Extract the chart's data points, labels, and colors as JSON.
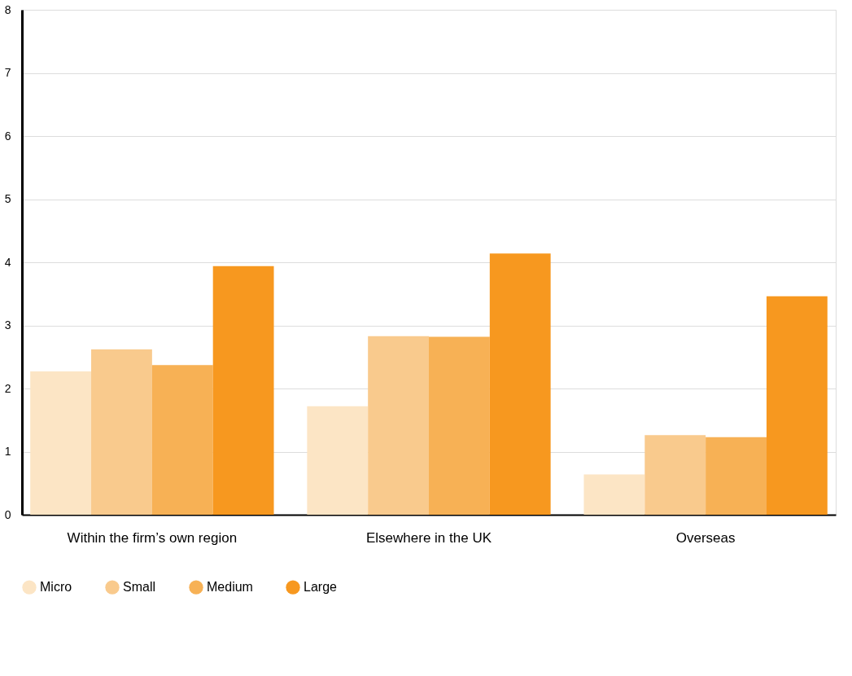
{
  "chart_data": {
    "type": "bar",
    "categories": [
      "Within the firm’s own region",
      "Elsewhere in the UK",
      "Overseas"
    ],
    "series": [
      {
        "name": "Micro",
        "color": "#fce5c5",
        "values": [
          2.27,
          1.72,
          0.64
        ]
      },
      {
        "name": "Small",
        "color": "#f9ca8d",
        "values": [
          2.62,
          2.83,
          1.26
        ]
      },
      {
        "name": "Medium",
        "color": "#f7b155",
        "values": [
          2.37,
          2.82,
          1.23
        ]
      },
      {
        "name": "Large",
        "color": "#f7981f",
        "values": [
          3.94,
          4.14,
          3.46
        ]
      }
    ],
    "ylim": [
      0,
      8
    ],
    "yticks": [
      0,
      1,
      2,
      3,
      4,
      5,
      6,
      7,
      8
    ],
    "grid": "y",
    "legend": "bottom left"
  }
}
